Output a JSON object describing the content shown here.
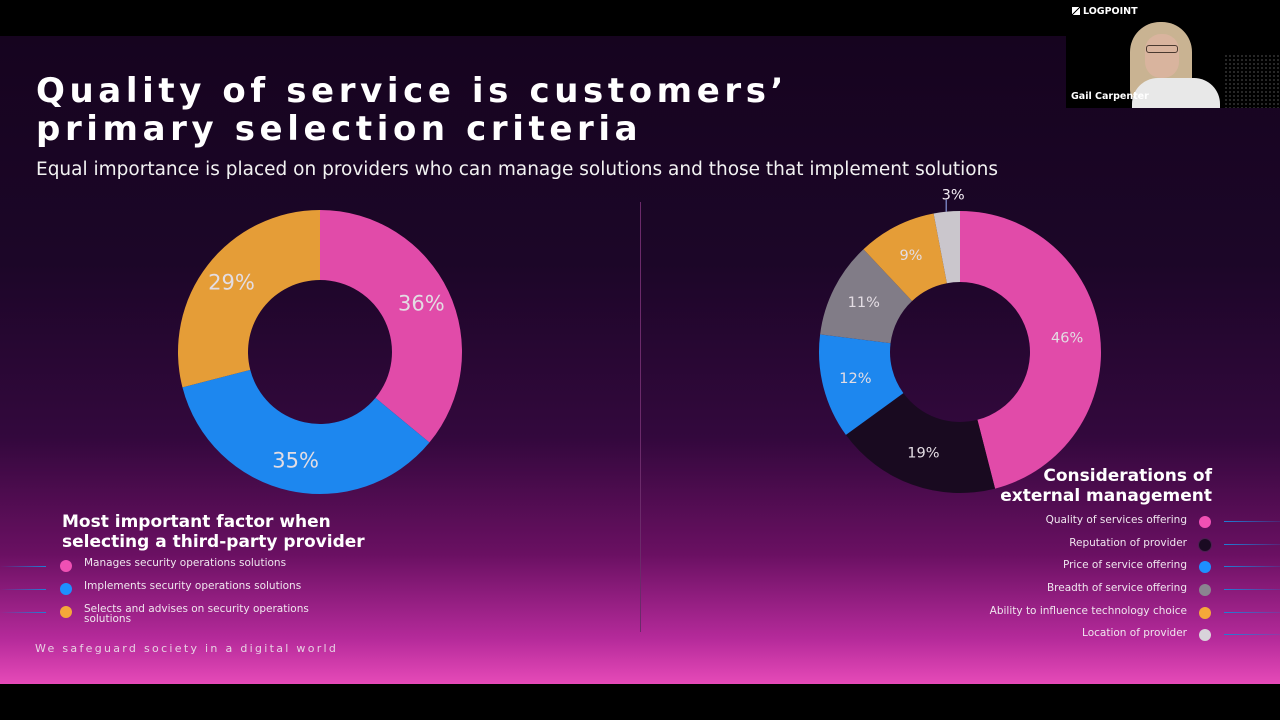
{
  "slide": {
    "title_line1": "Quality of service is customers’",
    "title_line2": "primary selection criteria",
    "subtitle": "Equal importance is placed on providers who can manage solutions and those that implement solutions",
    "footer": "We safeguard society in a digital world"
  },
  "webcam": {
    "logo": "LOGPOINT",
    "participant": "Gail Carpenter"
  },
  "chart_data": [
    {
      "type": "pie",
      "title": "Most important factor when selecting a third-party provider",
      "categories": [
        "Manages security operations solutions",
        "Implements security operations solutions",
        "Selects and advises on security operations solutions"
      ],
      "values": [
        36,
        35,
        29
      ],
      "labels": [
        "36%",
        "35%",
        "29%"
      ],
      "colors": [
        "#f050b4",
        "#1e90ff",
        "#f5a83a"
      ],
      "legend_placement": "bottom-left"
    },
    {
      "type": "pie",
      "title": "Considerations of external management",
      "categories": [
        "Quality of services offering",
        "Reputation of provider",
        "Price of service offering",
        "Breadth of service offering",
        "Ability to influence technology choice",
        "Location of provider"
      ],
      "values": [
        46,
        19,
        12,
        11,
        9,
        3
      ],
      "labels": [
        "46%",
        "19%",
        "12%",
        "11%",
        "9%",
        "3%"
      ],
      "colors": [
        "#f050b4",
        "#1a0a22",
        "#1e90ff",
        "#8a8490",
        "#f5a83a",
        "#d8d4da"
      ],
      "legend_placement": "bottom-right"
    }
  ]
}
